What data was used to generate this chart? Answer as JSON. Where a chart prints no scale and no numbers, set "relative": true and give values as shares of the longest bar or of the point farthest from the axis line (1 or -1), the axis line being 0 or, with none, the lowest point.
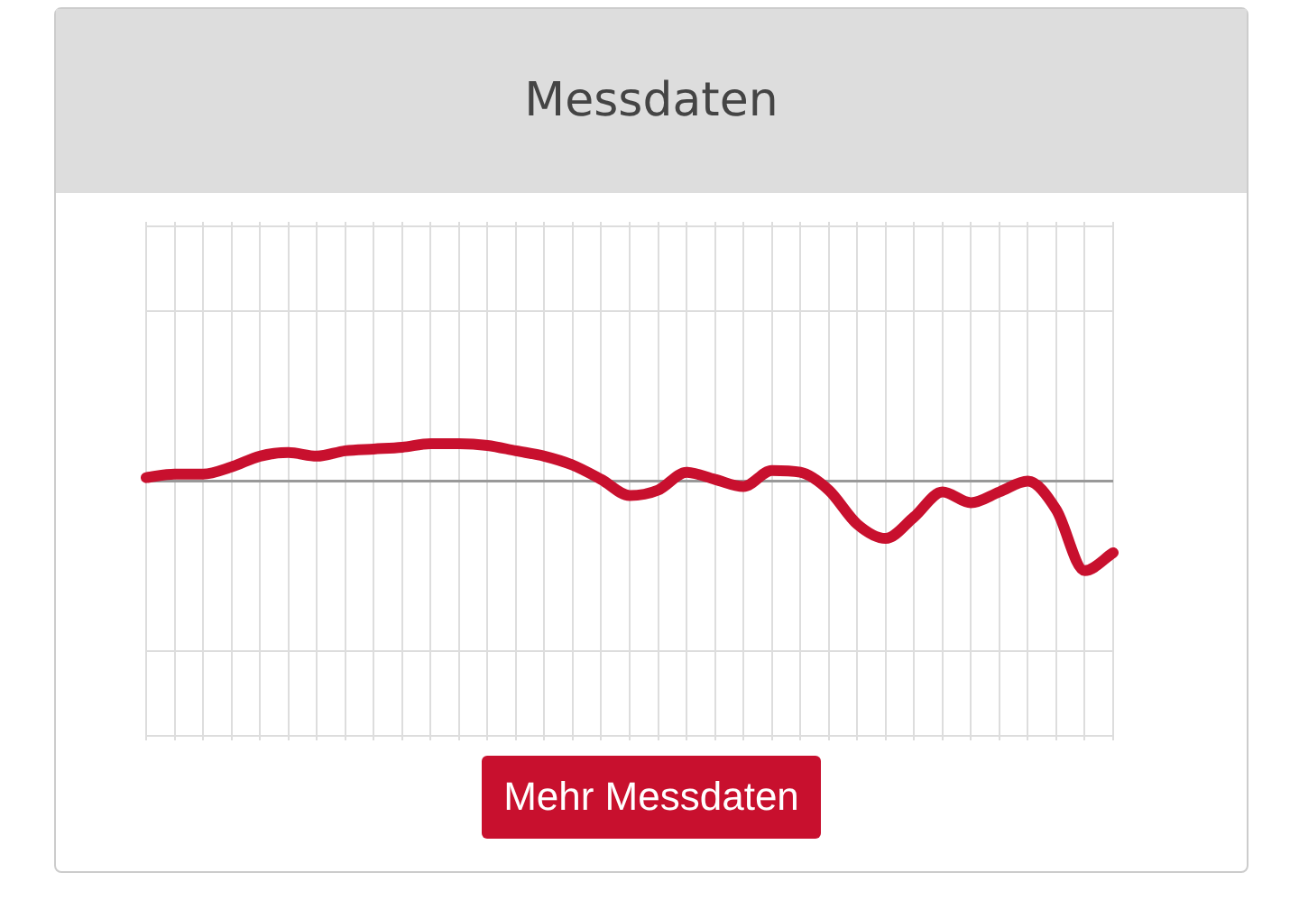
{
  "chart_data": {
    "type": "line",
    "title": "Messdaten",
    "relative": true,
    "grid": true,
    "legend": false,
    "marker": "none",
    "line_style": "solid",
    "annotations": [
      "Mehr Messdaten"
    ],
    "categories": [
      null,
      null,
      null,
      null,
      null,
      null,
      null,
      null,
      null,
      null,
      null,
      null,
      null,
      null,
      null,
      null,
      null,
      null,
      null,
      null,
      null,
      null,
      null,
      null,
      null,
      null,
      null,
      null,
      null,
      null,
      null,
      null,
      null,
      null,
      null
    ],
    "series": [
      {
        "color": "#c8102e",
        "values": [
          0.04,
          0.08,
          0.08,
          0.16,
          0.28,
          0.32,
          0.28,
          0.34,
          0.36,
          0.38,
          0.42,
          0.42,
          0.4,
          0.34,
          0.28,
          0.18,
          0.02,
          -0.16,
          -0.1,
          0.1,
          0.02,
          -0.06,
          0.12,
          0.1,
          -0.1,
          -0.48,
          -0.64,
          -0.4,
          -0.12,
          -0.24,
          -0.12,
          0,
          -0.32,
          -1,
          -0.8
        ]
      }
    ]
  }
}
